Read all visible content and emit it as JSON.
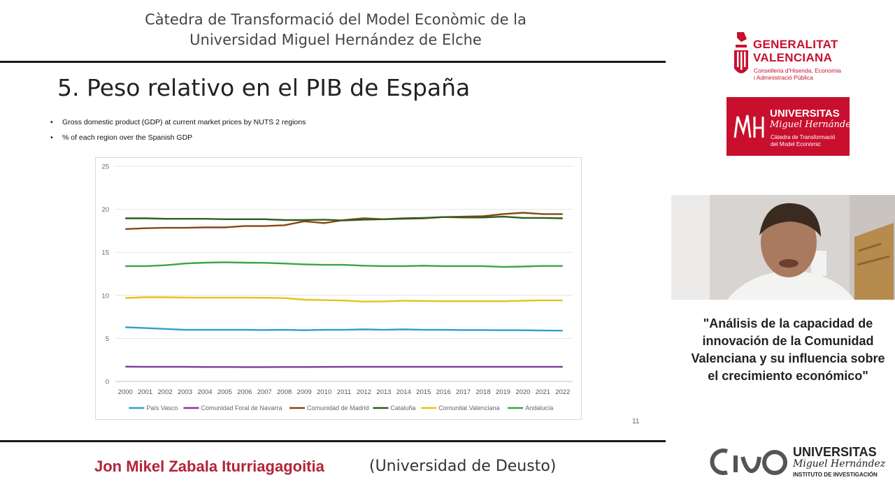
{
  "header": {
    "line1": "Càtedra de Transformació del Model Econòmic de la",
    "line2": "Universidad Miguel Hernández de Elche"
  },
  "slide": {
    "title": "5. Peso relativo en el PIB de España",
    "bullets": [
      "Gross domestic product (GDP) at current market prices by NUTS 2 regions",
      "% of each region over the Spanish GDP"
    ],
    "page_number": "11"
  },
  "chart_data": {
    "type": "line",
    "x": [
      "2000",
      "2001",
      "2002",
      "2003",
      "2004",
      "2005",
      "2006",
      "2007",
      "2008",
      "2009",
      "2010",
      "2011",
      "2012",
      "2013",
      "2014",
      "2015",
      "2016",
      "2017",
      "2018",
      "2019",
      "2020",
      "2021",
      "2022"
    ],
    "ylim": [
      0,
      25
    ],
    "yticks": [
      "0",
      "5",
      "10",
      "15",
      "20",
      "25"
    ],
    "grid": true,
    "legend_position": "bottom",
    "series": [
      {
        "name": "País Vasco",
        "color": "#2e9fd0",
        "values": [
          6.3,
          6.2,
          6.1,
          6.0,
          6.0,
          6.0,
          6.0,
          5.97,
          6.0,
          5.95,
          6.0,
          6.0,
          6.05,
          6.0,
          6.05,
          6.0,
          6.0,
          5.97,
          5.97,
          5.95,
          5.95,
          5.92,
          5.9
        ]
      },
      {
        "name": "Comunidad Foral de Navarra",
        "color": "#7a3c9a",
        "values": [
          1.72,
          1.7,
          1.7,
          1.7,
          1.68,
          1.68,
          1.67,
          1.67,
          1.68,
          1.68,
          1.69,
          1.7,
          1.7,
          1.7,
          1.7,
          1.7,
          1.7,
          1.7,
          1.7,
          1.7,
          1.7,
          1.7,
          1.7
        ]
      },
      {
        "name": "Comunidad de Madrid",
        "color": "#8b4513",
        "values": [
          17.7,
          17.8,
          17.85,
          17.85,
          17.9,
          17.9,
          18.05,
          18.05,
          18.15,
          18.6,
          18.4,
          18.75,
          18.95,
          18.85,
          18.9,
          18.95,
          19.1,
          19.15,
          19.2,
          19.45,
          19.6,
          19.45,
          19.45
        ]
      },
      {
        "name": "Cataluña",
        "color": "#2e5e1e",
        "values": [
          18.95,
          18.95,
          18.9,
          18.9,
          18.9,
          18.85,
          18.85,
          18.85,
          18.75,
          18.75,
          18.8,
          18.7,
          18.8,
          18.85,
          18.95,
          19.0,
          19.1,
          19.05,
          19.05,
          19.15,
          19.0,
          19.0,
          18.95
        ]
      },
      {
        "name": "Comunitat Valenciana",
        "color": "#e6c21a",
        "values": [
          9.7,
          9.78,
          9.78,
          9.75,
          9.73,
          9.73,
          9.73,
          9.72,
          9.68,
          9.5,
          9.45,
          9.4,
          9.28,
          9.3,
          9.38,
          9.35,
          9.32,
          9.32,
          9.32,
          9.32,
          9.38,
          9.42,
          9.42
        ]
      },
      {
        "name": "Andalucía",
        "color": "#3aa447",
        "values": [
          13.4,
          13.4,
          13.5,
          13.7,
          13.8,
          13.85,
          13.8,
          13.78,
          13.7,
          13.6,
          13.55,
          13.55,
          13.45,
          13.4,
          13.4,
          13.45,
          13.4,
          13.4,
          13.4,
          13.3,
          13.35,
          13.42,
          13.42
        ]
      }
    ]
  },
  "footer": {
    "presenter": "Jon Mikel Zabala Iturriagagoitia",
    "affiliation": "(Universidad de Deusto)"
  },
  "logos": {
    "gv_title_1": "GENERALITAT",
    "gv_title_2": "VALENCIANA",
    "gv_sub_1": "Conselleria d'Hisenda, Economia",
    "gv_sub_2": "i Administració Pública",
    "umh_title": "UNIVERSITAS",
    "umh_script": "Miguel Hernández",
    "umh_sub_1": "Càtedra de Transformació",
    "umh_sub_2": "del Model Econòmic",
    "inst_title": "UNIVERSITAS",
    "inst_script": "Miguel Hernández",
    "inst_sub": "INSTITUTO DE INVESTIGACIÓN"
  },
  "talk_title": "\"Análisis de la capacidad de innovación de la Comunidad Valenciana y su influencia sobre el crecimiento económico\"",
  "colors": {
    "brand_red": "#c8102e",
    "presenter_red": "#b32436"
  }
}
